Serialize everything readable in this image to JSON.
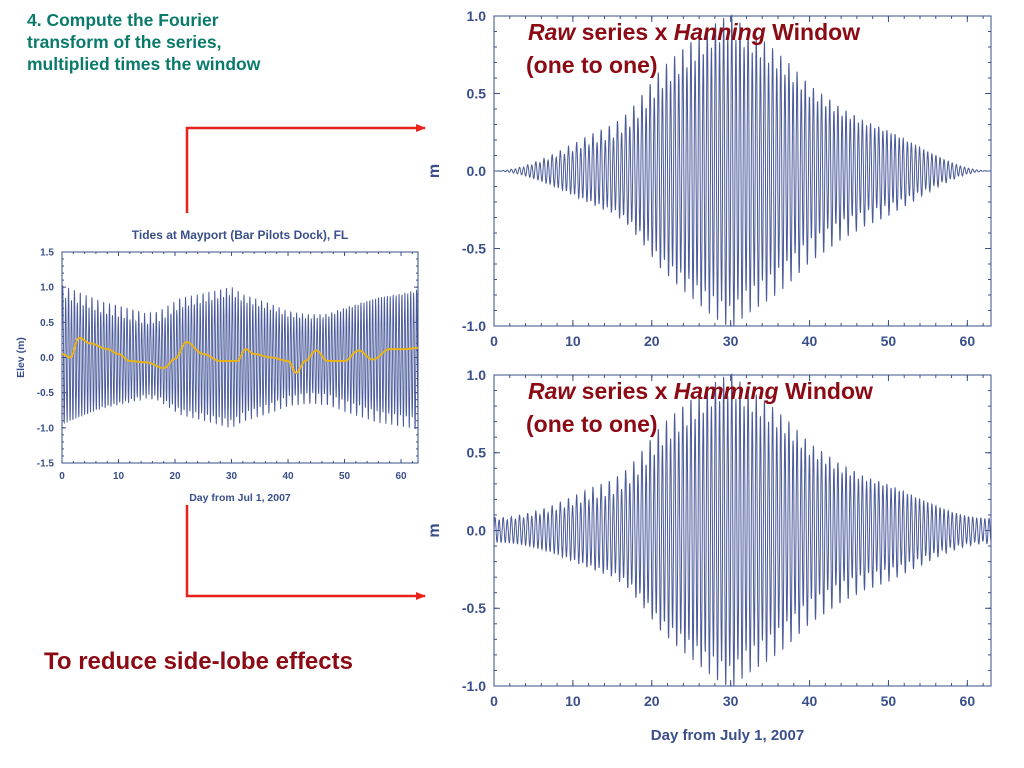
{
  "slide": {
    "step_lines": [
      "4. Compute the Fourier",
      "transform of the series,",
      "multiplied times the window"
    ],
    "conclusion": "To reduce side-lobe effects",
    "arrow_color": "#e8231c",
    "text_teal": "#0a7a6a",
    "text_red": "#8b0a14",
    "axis_color": "#3a4f8a",
    "series_color": "#4a5a9a",
    "mean_color": "#e8b31a"
  },
  "chart_data": [
    {
      "type": "line",
      "title": "Tides at Mayport (Bar Pilots Dock), FL",
      "xlabel": "Day from Jul 1, 2007",
      "ylabel": "Elev (m)",
      "xlim": [
        0,
        63
      ],
      "ylim": [
        -1.5,
        1.5
      ],
      "xticks": [
        "0",
        "10",
        "20",
        "30",
        "40",
        "50",
        "60"
      ],
      "yticks": [
        "1.5",
        "1.0",
        "0.5",
        "0.0",
        "-0.5",
        "-1.0",
        "-1.5"
      ],
      "series": [
        {
          "name": "",
          "kind": "semidiurnal tide",
          "period_days": 0.5175,
          "amplitude_envelope_x": [
            0,
            3,
            7,
            12,
            15,
            17,
            21,
            25,
            30,
            32,
            37,
            40,
            44,
            47,
            51,
            56,
            60,
            63
          ],
          "amplitude_envelope_y": [
            0.95,
            0.85,
            0.72,
            0.62,
            0.55,
            0.58,
            0.78,
            0.85,
            0.95,
            0.85,
            0.72,
            0.62,
            0.58,
            0.6,
            0.72,
            0.85,
            0.9,
            0.95
          ]
        },
        {
          "name": "",
          "kind": "low-pass mean",
          "x": [
            0,
            1.5,
            3,
            5,
            8,
            10,
            12,
            15,
            18,
            20,
            22,
            25,
            28,
            31,
            32.5,
            34,
            37,
            40,
            41.5,
            43,
            45,
            47,
            50,
            52.5,
            55,
            58,
            61,
            63
          ],
          "y": [
            0.05,
            0.0,
            0.28,
            0.2,
            0.12,
            0.05,
            -0.05,
            -0.07,
            -0.15,
            -0.02,
            0.22,
            0.05,
            -0.05,
            -0.05,
            0.12,
            0.05,
            0.0,
            -0.05,
            -0.22,
            -0.05,
            0.1,
            -0.05,
            -0.05,
            0.1,
            -0.03,
            0.12,
            0.12,
            0.14
          ]
        }
      ]
    },
    {
      "type": "line",
      "overlay_title": [
        "Raw",
        " series x ",
        "Hanning",
        " Window",
        "(one to one)"
      ],
      "ylabel": "m",
      "xlim": [
        0,
        63
      ],
      "ylim": [
        -1.0,
        1.0
      ],
      "xticks": [
        "0",
        "10",
        "20",
        "30",
        "40",
        "50",
        "60"
      ],
      "yticks": [
        "1.0",
        "0.5",
        "0.0",
        "-0.5",
        "-1.0"
      ],
      "window": "hanning"
    },
    {
      "type": "line",
      "overlay_title": [
        "Raw",
        " series x ",
        "Hamming",
        " Window",
        "(one to one)"
      ],
      "xlabel": "Day from July 1, 2007",
      "ylabel": "m",
      "xlim": [
        0,
        63
      ],
      "ylim": [
        -1.0,
        1.0
      ],
      "xticks": [
        "0",
        "10",
        "20",
        "30",
        "40",
        "50",
        "60"
      ],
      "yticks": [
        "1.0",
        "0.5",
        "0.0",
        "-0.5",
        "-1.0"
      ],
      "window": "hamming"
    }
  ]
}
